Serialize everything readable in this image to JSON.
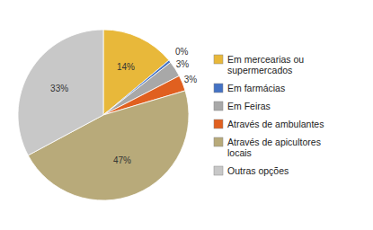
{
  "chart_data": {
    "type": "pie",
    "categories": [
      "Em mercearias ou\nsupermercados",
      "Em farmácias",
      "Em Feiras",
      "Através de ambulantes",
      "Através de apicultores\nlocais",
      "Outras opções"
    ],
    "values": [
      14,
      0.5,
      3,
      3,
      47,
      33
    ],
    "value_labels": [
      "14%",
      "0%",
      "3%",
      "3%",
      "47%",
      "33%"
    ],
    "colors": [
      "#E8B83A",
      "#4472C4",
      "#A8A8A8",
      "#E06020",
      "#B8AA7A",
      "#C8C8C8"
    ],
    "data_labels": true,
    "legend": "right"
  }
}
